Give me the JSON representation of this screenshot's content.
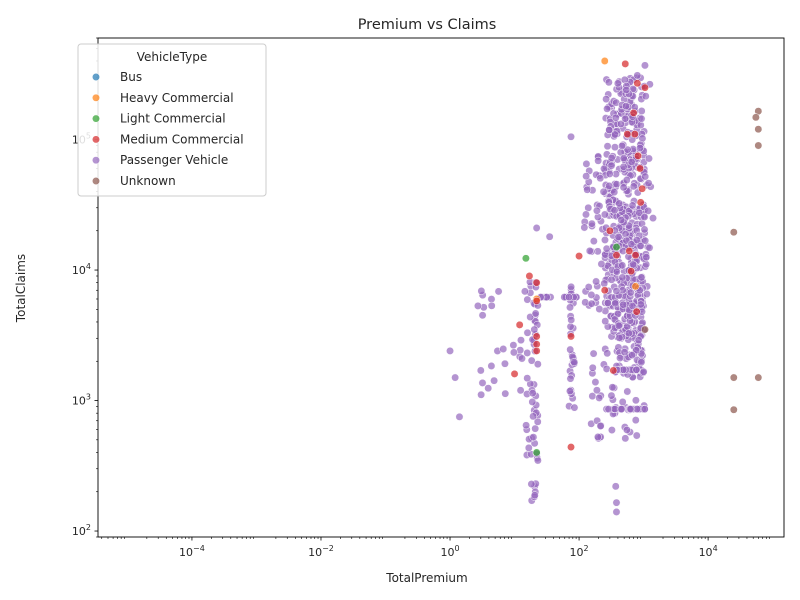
{
  "chart_data": {
    "type": "scatter",
    "title": "Premium vs Claims",
    "xlabel": "TotalPremium",
    "ylabel": "TotalClaims",
    "xscale": "log",
    "yscale": "log",
    "xlim": [
      3.5e-06,
      150000
    ],
    "ylim": [
      90,
      600000
    ],
    "grid": false,
    "x_ticks": [
      {
        "value": 0.0001,
        "base": "10",
        "exp": "−4"
      },
      {
        "value": 0.01,
        "base": "10",
        "exp": "−2"
      },
      {
        "value": 1,
        "base": "10",
        "exp": "0"
      },
      {
        "value": 100,
        "base": "10",
        "exp": "2"
      },
      {
        "value": 10000,
        "base": "10",
        "exp": "4"
      }
    ],
    "y_ticks": [
      {
        "value": 100,
        "base": "10",
        "exp": "2"
      },
      {
        "value": 1000,
        "base": "10",
        "exp": "3"
      },
      {
        "value": 10000,
        "base": "10",
        "exp": "4"
      },
      {
        "value": 100000,
        "base": "10",
        "exp": "5"
      }
    ],
    "legend": {
      "title": "VehicleType",
      "position": "top-left",
      "entries": [
        {
          "name": "Bus",
          "color": "#1f77b4"
        },
        {
          "name": "Heavy Commercial",
          "color": "#ff7f0e"
        },
        {
          "name": "Light Commercial",
          "color": "#2ca02c"
        },
        {
          "name": "Medium Commercial",
          "color": "#d62728"
        },
        {
          "name": "Passenger Vehicle",
          "color": "#9467bd"
        },
        {
          "name": "Unknown",
          "color": "#8c564b"
        }
      ]
    },
    "series": [
      {
        "name": "Heavy Commercial",
        "color": "#ff7f0e",
        "points": [
          [
            250,
            400000
          ],
          [
            22,
            6000
          ],
          [
            750,
            7500
          ]
        ]
      },
      {
        "name": "Light Commercial",
        "color": "#2ca02c",
        "points": [
          [
            15,
            12300
          ],
          [
            22,
            400
          ],
          [
            380,
            15000
          ]
        ]
      },
      {
        "name": "Medium Commercial",
        "color": "#d62728",
        "points": [
          [
            520,
            380000
          ],
          [
            1050,
            250000
          ],
          [
            800,
            270000
          ],
          [
            820,
            75000
          ],
          [
            950,
            42000
          ],
          [
            700,
            160000
          ],
          [
            560,
            110000
          ],
          [
            17,
            9000
          ],
          [
            22,
            8000
          ],
          [
            100,
            12800
          ],
          [
            380,
            13000
          ],
          [
            750,
            13000
          ],
          [
            600,
            14000
          ],
          [
            12,
            3800
          ],
          [
            22,
            3100
          ],
          [
            75,
            3100
          ],
          [
            780,
            4800
          ],
          [
            22,
            2700
          ],
          [
            22,
            2400
          ],
          [
            10,
            1600
          ],
          [
            340,
            1700
          ],
          [
            75,
            440
          ],
          [
            22,
            5800
          ],
          [
            250,
            7000
          ],
          [
            640,
            9800
          ],
          [
            300,
            20000
          ],
          [
            880,
            60000
          ],
          [
            730,
            110000
          ],
          [
            900,
            33000
          ]
        ]
      },
      {
        "name": "Unknown",
        "color": "#8c564b",
        "points": [
          [
            60000,
            165000
          ],
          [
            55000,
            148000
          ],
          [
            60000,
            120000
          ],
          [
            60000,
            90000
          ],
          [
            25000,
            19500
          ],
          [
            25000,
            1500
          ],
          [
            60000,
            1500
          ],
          [
            25000,
            850
          ],
          [
            1050,
            3500
          ]
        ]
      }
    ]
  }
}
